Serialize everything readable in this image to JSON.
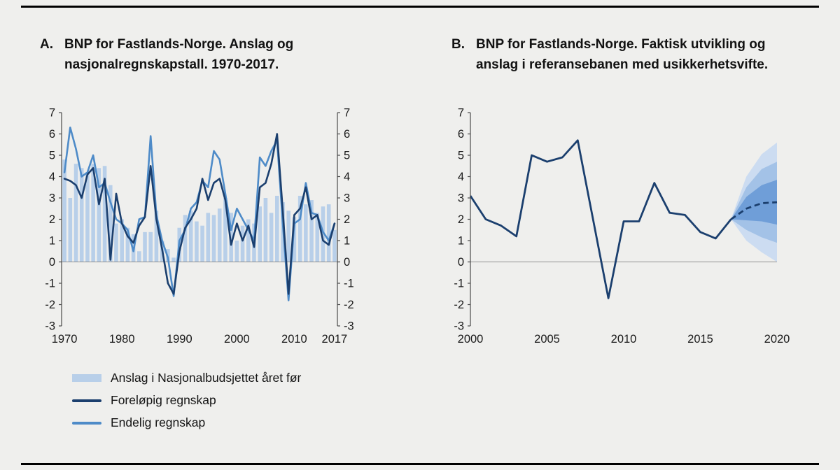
{
  "figure": {
    "background_color": "#efefed",
    "rule_color": "#000000"
  },
  "panelA": {
    "label": "A.",
    "title": "BNP for Fastlands-Norge. Anslag og nasjonalregnskapstall. 1970-2017."
  },
  "panelB": {
    "label": "B.",
    "title": "BNP for Fastlands-Norge. Faktisk utvikling og anslag i referansebanen med usikkerhetsvifte."
  },
  "legend": [
    {
      "type": "bar",
      "color": "#b8cfe9",
      "label": "Anslag i Nasjonalbudsjettet året før"
    },
    {
      "type": "line",
      "color": "#1b3f6e",
      "label": "Foreløpig regnskap"
    },
    {
      "type": "line",
      "color": "#4e8bc8",
      "label": "Endelig regnskap"
    }
  ],
  "chart_data": [
    {
      "type": "bar",
      "panel": "A",
      "title": "BNP for Fastlands-Norge. Anslag og nasjonalregnskapstall. 1970-2017.",
      "x_start": 1970,
      "x_end": 2017,
      "ylim": [
        -3,
        7
      ],
      "yticks": [
        7,
        6,
        5,
        4,
        3,
        2,
        1,
        0,
        -1,
        -2,
        -3
      ],
      "xtick_years": [
        1970,
        1980,
        1990,
        2000,
        2010,
        2017
      ],
      "y_axis_sides": [
        "left",
        "right"
      ],
      "grid": false,
      "legend_position": "below-left",
      "series": [
        {
          "name": "Anslag i Nasjonalbudsjettet året før",
          "type": "bar",
          "color": "#b8cfe9",
          "values": [
            4.8,
            3.0,
            4.6,
            4.4,
            4.2,
            4.6,
            4.4,
            4.5,
            3.6,
            1.8,
            2.0,
            1.6,
            1.3,
            0.5,
            1.4,
            1.4,
            2.4,
            1.0,
            0.6,
            0.2,
            1.6,
            2.2,
            2.4,
            1.9,
            1.7,
            2.3,
            2.2,
            2.5,
            3.0,
            2.3,
            1.0,
            1.7,
            2.0,
            1.8,
            2.6,
            3.0,
            2.3,
            3.1,
            2.8,
            2.4,
            2.1,
            3.1,
            2.7,
            2.9,
            2.3,
            2.6,
            2.7,
            1.5
          ]
        },
        {
          "name": "Foreløpig regnskap",
          "type": "line",
          "color": "#1b3f6e",
          "values": [
            3.9,
            3.8,
            3.6,
            3.0,
            4.1,
            4.4,
            2.7,
            3.9,
            0.1,
            3.2,
            1.8,
            1.2,
            0.9,
            1.7,
            2.1,
            4.5,
            2.0,
            0.6,
            -1.0,
            -1.5,
            0.5,
            1.6,
            2.0,
            2.5,
            3.9,
            2.9,
            3.7,
            3.9,
            2.9,
            0.8,
            1.8,
            1.0,
            1.7,
            0.7,
            3.5,
            3.7,
            4.6,
            6.0,
            2.4,
            -1.5,
            2.2,
            2.5,
            3.5,
            2.0,
            2.2,
            1.0,
            0.8,
            1.8
          ]
        },
        {
          "name": "Endelig regnskap",
          "type": "line",
          "color": "#4e8bc8",
          "values": [
            4.2,
            6.3,
            5.3,
            4.0,
            4.2,
            5.0,
            3.5,
            3.7,
            2.8,
            2.0,
            1.8,
            1.5,
            0.5,
            2.0,
            2.1,
            5.9,
            2.2,
            1.0,
            0.2,
            -1.6,
            1.0,
            1.5,
            2.5,
            2.8,
            3.8,
            3.5,
            5.2,
            4.8,
            3.2,
            1.5,
            2.5,
            2.0,
            1.5,
            1.0,
            4.9,
            4.5,
            5.2,
            5.7,
            1.8,
            -1.8,
            1.8,
            2.0,
            3.7,
            2.3,
            2.2,
            1.4,
            1.0,
            1.8
          ]
        }
      ]
    },
    {
      "type": "line",
      "panel": "B",
      "title": "BNP for Fastlands-Norge. Faktisk utvikling og anslag i referansebanen med usikkerhetsvifte.",
      "xlim": [
        2000,
        2020
      ],
      "ylim": [
        -3,
        7
      ],
      "yticks": [
        7,
        6,
        5,
        4,
        3,
        2,
        1,
        0,
        -1,
        -2,
        -3
      ],
      "xticks": [
        2000,
        2005,
        2010,
        2015,
        2020
      ],
      "grid": false,
      "line_color": "#1b3f6e",
      "actual": {
        "name": "Faktisk utvikling",
        "x_start": 2000,
        "values": [
          3.1,
          2.0,
          1.7,
          1.2,
          5.0,
          4.7,
          4.9,
          5.7,
          2.0,
          -1.7,
          1.9,
          1.9,
          3.7,
          2.3,
          2.2,
          1.4,
          1.1,
          2.0
        ]
      },
      "projection": {
        "name": "Anslag i referansebanen",
        "style": "dashed",
        "x": [
          2017,
          2018,
          2019,
          2020
        ],
        "values": [
          2.0,
          2.5,
          2.75,
          2.8
        ]
      },
      "fan": {
        "name": "Usikkerhetsvifte",
        "x": [
          2017,
          2018,
          2019,
          2020
        ],
        "bands": [
          {
            "half_width": [
              0,
              1.5,
              2.3,
              2.8
            ],
            "color": "#ccdcf1"
          },
          {
            "half_width": [
              0,
              1.0,
              1.6,
              1.9
            ],
            "color": "#a3c2e7"
          },
          {
            "half_width": [
              0,
              0.55,
              0.85,
              1.05
            ],
            "color": "#6f9ed8"
          }
        ]
      }
    }
  ]
}
